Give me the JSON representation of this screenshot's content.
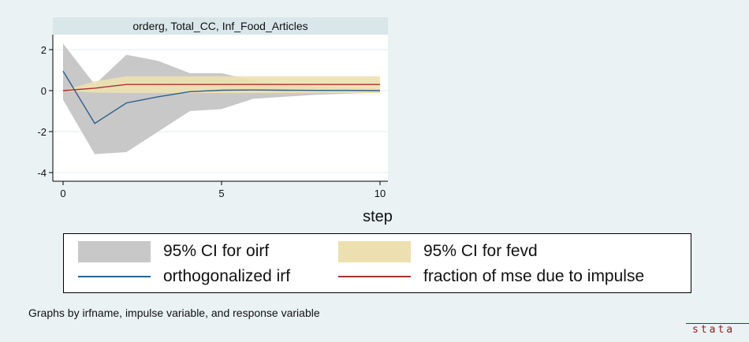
{
  "chart_data": {
    "type": "line",
    "title": "orderg, Total_CC, Inf_Food_Articles",
    "xlabel": "step",
    "ylabel": "",
    "xlim": [
      0,
      10
    ],
    "ylim": [
      -4.2,
      2.5
    ],
    "xticks": [
      0,
      5,
      10
    ],
    "yticks": [
      2,
      0,
      -2,
      -4
    ],
    "x": [
      0,
      1,
      2,
      3,
      4,
      5,
      6,
      7,
      8,
      9,
      10
    ],
    "bands": [
      {
        "name": "95% CI for oirf",
        "color": "#c8c8c8",
        "lower": [
          -0.45,
          -3.1,
          -3.0,
          -2.0,
          -1.0,
          -0.9,
          -0.4,
          -0.3,
          -0.2,
          -0.15,
          -0.1
        ],
        "upper": [
          2.3,
          0.3,
          1.75,
          1.45,
          0.85,
          0.85,
          0.5,
          0.3,
          0.2,
          0.15,
          0.1
        ]
      },
      {
        "name": "95% CI for fevd",
        "color": "#ede0b0",
        "lower": [
          0,
          -0.1,
          -0.12,
          -0.12,
          -0.12,
          -0.12,
          -0.12,
          -0.12,
          -0.12,
          -0.12,
          -0.12
        ],
        "upper": [
          0,
          0.45,
          0.7,
          0.7,
          0.7,
          0.7,
          0.7,
          0.7,
          0.7,
          0.7,
          0.7
        ]
      }
    ],
    "series": [
      {
        "name": "orthogonalized irf",
        "color": "#2e5f8a",
        "values": [
          0.95,
          -1.6,
          -0.6,
          -0.3,
          -0.05,
          0.02,
          0.03,
          0.02,
          0.01,
          0.01,
          0.0
        ]
      },
      {
        "name": "fraction of mse due to impulse",
        "color": "#a83232",
        "values": [
          0.0,
          0.12,
          0.3,
          0.3,
          0.3,
          0.3,
          0.3,
          0.3,
          0.3,
          0.3,
          0.3
        ]
      }
    ],
    "legend": {
      "placement": "bottom",
      "items": [
        "95% CI for oirf",
        "95% CI for fevd",
        "orthogonalized irf",
        "fraction of mse due to impulse"
      ]
    },
    "note": "Graphs by irfname, impulse variable, and response variable",
    "watermark": "stata"
  }
}
